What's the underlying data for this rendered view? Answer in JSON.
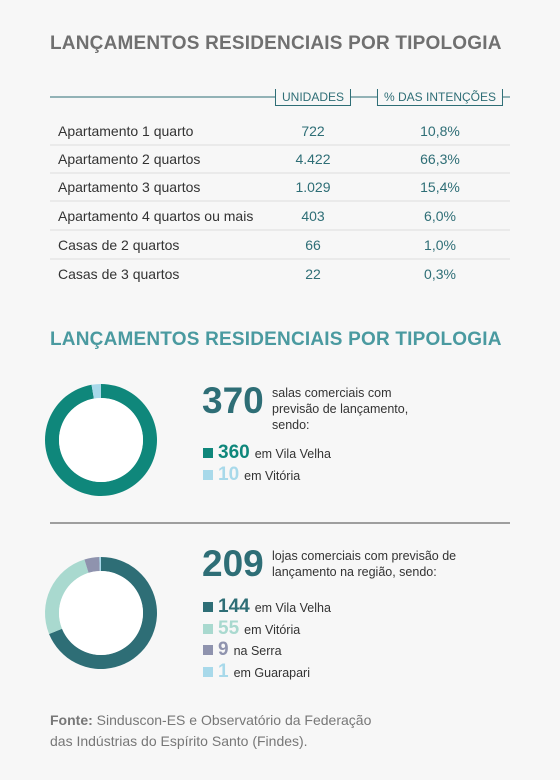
{
  "table_title": "LANÇAMENTOS RESIDENCIAIS POR TIPOLOGIA",
  "table": {
    "headers": [
      "UNIDADES",
      "% DAS INTENÇÕES"
    ],
    "rows": [
      [
        "Apartamento 1 quarto",
        "722",
        "10,8%"
      ],
      [
        "Apartamento 2 quartos",
        "4.422",
        "66,3%"
      ],
      [
        "Apartamento 3 quartos",
        "1.029",
        "15,4%"
      ],
      [
        "Apartamento 4 quartos ou mais",
        "403",
        "6,0%"
      ],
      [
        "Casas de 2 quartos",
        "66",
        "1,0%"
      ],
      [
        "Casas de 3 quartos",
        "22",
        "0,3%"
      ]
    ]
  },
  "charts_title": "LANÇAMENTOS RESIDENCIAIS POR TIPOLOGIA",
  "chart_data": [
    {
      "type": "pie",
      "total": 370,
      "description": "salas comerciais com previsão de lançamento, sendo:",
      "categories": [
        "em Vila Velha",
        "em Vitória"
      ],
      "values": [
        360,
        10
      ],
      "colors": [
        "#0f877b",
        "#a8d9ea"
      ]
    },
    {
      "type": "pie",
      "total": 209,
      "description": "lojas comerciais com previsão de lançamento na região, sendo:",
      "categories": [
        "em Vila Velha",
        "em Vitória",
        "na Serra",
        "em Guarapari"
      ],
      "values": [
        144,
        55,
        9,
        1
      ],
      "colors": [
        "#2e6e76",
        "#a9d9cf",
        "#8f93ae",
        "#a8d9ea"
      ]
    }
  ],
  "source": {
    "label": "Fonte:",
    "lines": [
      "Sinduscon-ES e Observatório da Federação",
      "das Indústrias do Espírito Santo (Findes)."
    ]
  }
}
